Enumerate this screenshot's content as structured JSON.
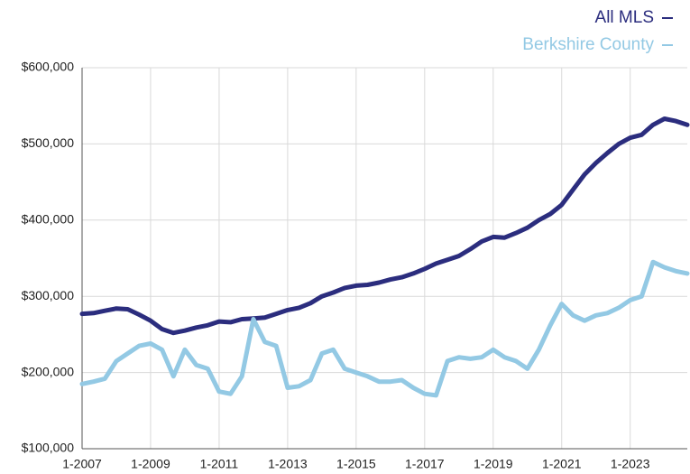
{
  "chart_data": {
    "type": "line",
    "x": [
      "2007-01",
      "2007-05",
      "2007-09",
      "2008-01",
      "2008-05",
      "2008-09",
      "2009-01",
      "2009-05",
      "2009-09",
      "2010-01",
      "2010-05",
      "2010-09",
      "2011-01",
      "2011-05",
      "2011-09",
      "2012-01",
      "2012-05",
      "2012-09",
      "2013-01",
      "2013-05",
      "2013-09",
      "2014-01",
      "2014-05",
      "2014-09",
      "2015-01",
      "2015-05",
      "2015-09",
      "2016-01",
      "2016-05",
      "2016-09",
      "2017-01",
      "2017-05",
      "2017-09",
      "2018-01",
      "2018-05",
      "2018-09",
      "2019-01",
      "2019-05",
      "2019-09",
      "2020-01",
      "2020-05",
      "2020-09",
      "2021-01",
      "2021-05",
      "2021-09",
      "2022-01",
      "2022-05",
      "2022-09",
      "2023-01",
      "2023-05",
      "2023-09",
      "2024-01",
      "2024-05",
      "2024-09"
    ],
    "series": [
      {
        "name": "All MLS",
        "color": "#2b2d7e",
        "values": [
          277000,
          278000,
          281000,
          284000,
          283000,
          276000,
          268000,
          257000,
          252000,
          255000,
          259000,
          262000,
          267000,
          266000,
          270000,
          271000,
          272000,
          277000,
          282000,
          285000,
          291000,
          300000,
          305000,
          311000,
          314000,
          315000,
          318000,
          322000,
          325000,
          330000,
          336000,
          343000,
          348000,
          353000,
          362000,
          372000,
          378000,
          377000,
          383000,
          390000,
          400000,
          408000,
          420000,
          440000,
          460000,
          475000,
          488000,
          500000,
          508000,
          512000,
          525000,
          533000,
          530000,
          525000
        ]
      },
      {
        "name": "Berkshire County",
        "color": "#93c9e4",
        "values": [
          185000,
          188000,
          192000,
          215000,
          225000,
          235000,
          238000,
          230000,
          195000,
          230000,
          210000,
          205000,
          175000,
          172000,
          195000,
          270000,
          240000,
          235000,
          180000,
          182000,
          190000,
          225000,
          230000,
          205000,
          200000,
          195000,
          188000,
          188000,
          190000,
          180000,
          172000,
          170000,
          215000,
          220000,
          218000,
          220000,
          230000,
          220000,
          215000,
          205000,
          230000,
          262000,
          290000,
          275000,
          268000,
          275000,
          278000,
          285000,
          295000,
          300000,
          345000,
          338000,
          333000,
          330000
        ]
      }
    ],
    "xlim": [
      "2007-01",
      "2024-09"
    ],
    "xticks": [
      {
        "value": "2007-01",
        "label": "1-2007"
      },
      {
        "value": "2009-01",
        "label": "1-2009"
      },
      {
        "value": "2011-01",
        "label": "1-2011"
      },
      {
        "value": "2013-01",
        "label": "1-2013"
      },
      {
        "value": "2015-01",
        "label": "1-2015"
      },
      {
        "value": "2017-01",
        "label": "1-2017"
      },
      {
        "value": "2019-01",
        "label": "1-2019"
      },
      {
        "value": "2021-01",
        "label": "1-2021"
      },
      {
        "value": "2023-01",
        "label": "1-2023"
      }
    ],
    "ylim": [
      100000,
      600000
    ],
    "yticks": [
      {
        "value": 100000,
        "label": "$100,000"
      },
      {
        "value": 200000,
        "label": "$200,000"
      },
      {
        "value": 300000,
        "label": "$300,000"
      },
      {
        "value": 400000,
        "label": "$400,000"
      },
      {
        "value": 500000,
        "label": "$500,000"
      },
      {
        "value": 600000,
        "label": "$600,000"
      }
    ],
    "grid": true,
    "legend": "top-right"
  }
}
